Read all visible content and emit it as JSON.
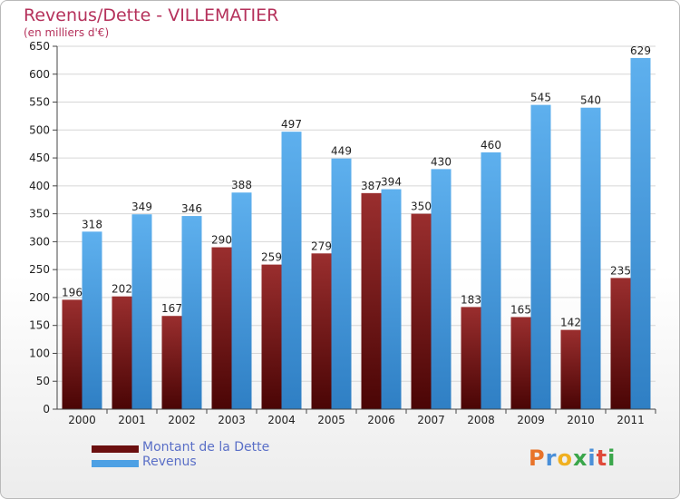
{
  "header": {
    "title": "Revenus/Dette - VILLEMATIER",
    "subtitle": "(en milliers d'€)"
  },
  "chart_data": {
    "type": "bar",
    "categories": [
      "2000",
      "2001",
      "2002",
      "2003",
      "2004",
      "2005",
      "2006",
      "2007",
      "2008",
      "2009",
      "2010",
      "2011"
    ],
    "series": [
      {
        "name": "Montant de la Dette",
        "color": "#7a1c1c",
        "values": [
          196,
          202,
          167,
          290,
          259,
          279,
          387,
          350,
          183,
          165,
          142,
          235
        ]
      },
      {
        "name": "Revenus",
        "color": "#4da0e4",
        "values": [
          318,
          349,
          346,
          388,
          497,
          449,
          394,
          430,
          460,
          545,
          540,
          629
        ]
      }
    ],
    "ylim": [
      0,
      650
    ],
    "yticks": [
      0,
      50,
      100,
      150,
      200,
      250,
      300,
      350,
      400,
      450,
      500,
      550,
      600,
      650
    ],
    "grid": true,
    "legend": "bottom-left"
  },
  "legend": {
    "items": [
      {
        "label": "Montant de la Dette",
        "color": "#6b0f0f"
      },
      {
        "label": "Revenus",
        "color": "#4da0e4"
      }
    ]
  },
  "logo": {
    "letters": [
      {
        "ch": "P",
        "color": "#e8732a"
      },
      {
        "ch": "r",
        "color": "#4a8fd8"
      },
      {
        "ch": "o",
        "color": "#f0b020"
      },
      {
        "ch": "x",
        "color": "#3aa64a"
      },
      {
        "ch": "i",
        "color": "#4a8fd8"
      },
      {
        "ch": "t",
        "color": "#e04a3a"
      },
      {
        "ch": "i",
        "color": "#3aa64a"
      }
    ]
  }
}
